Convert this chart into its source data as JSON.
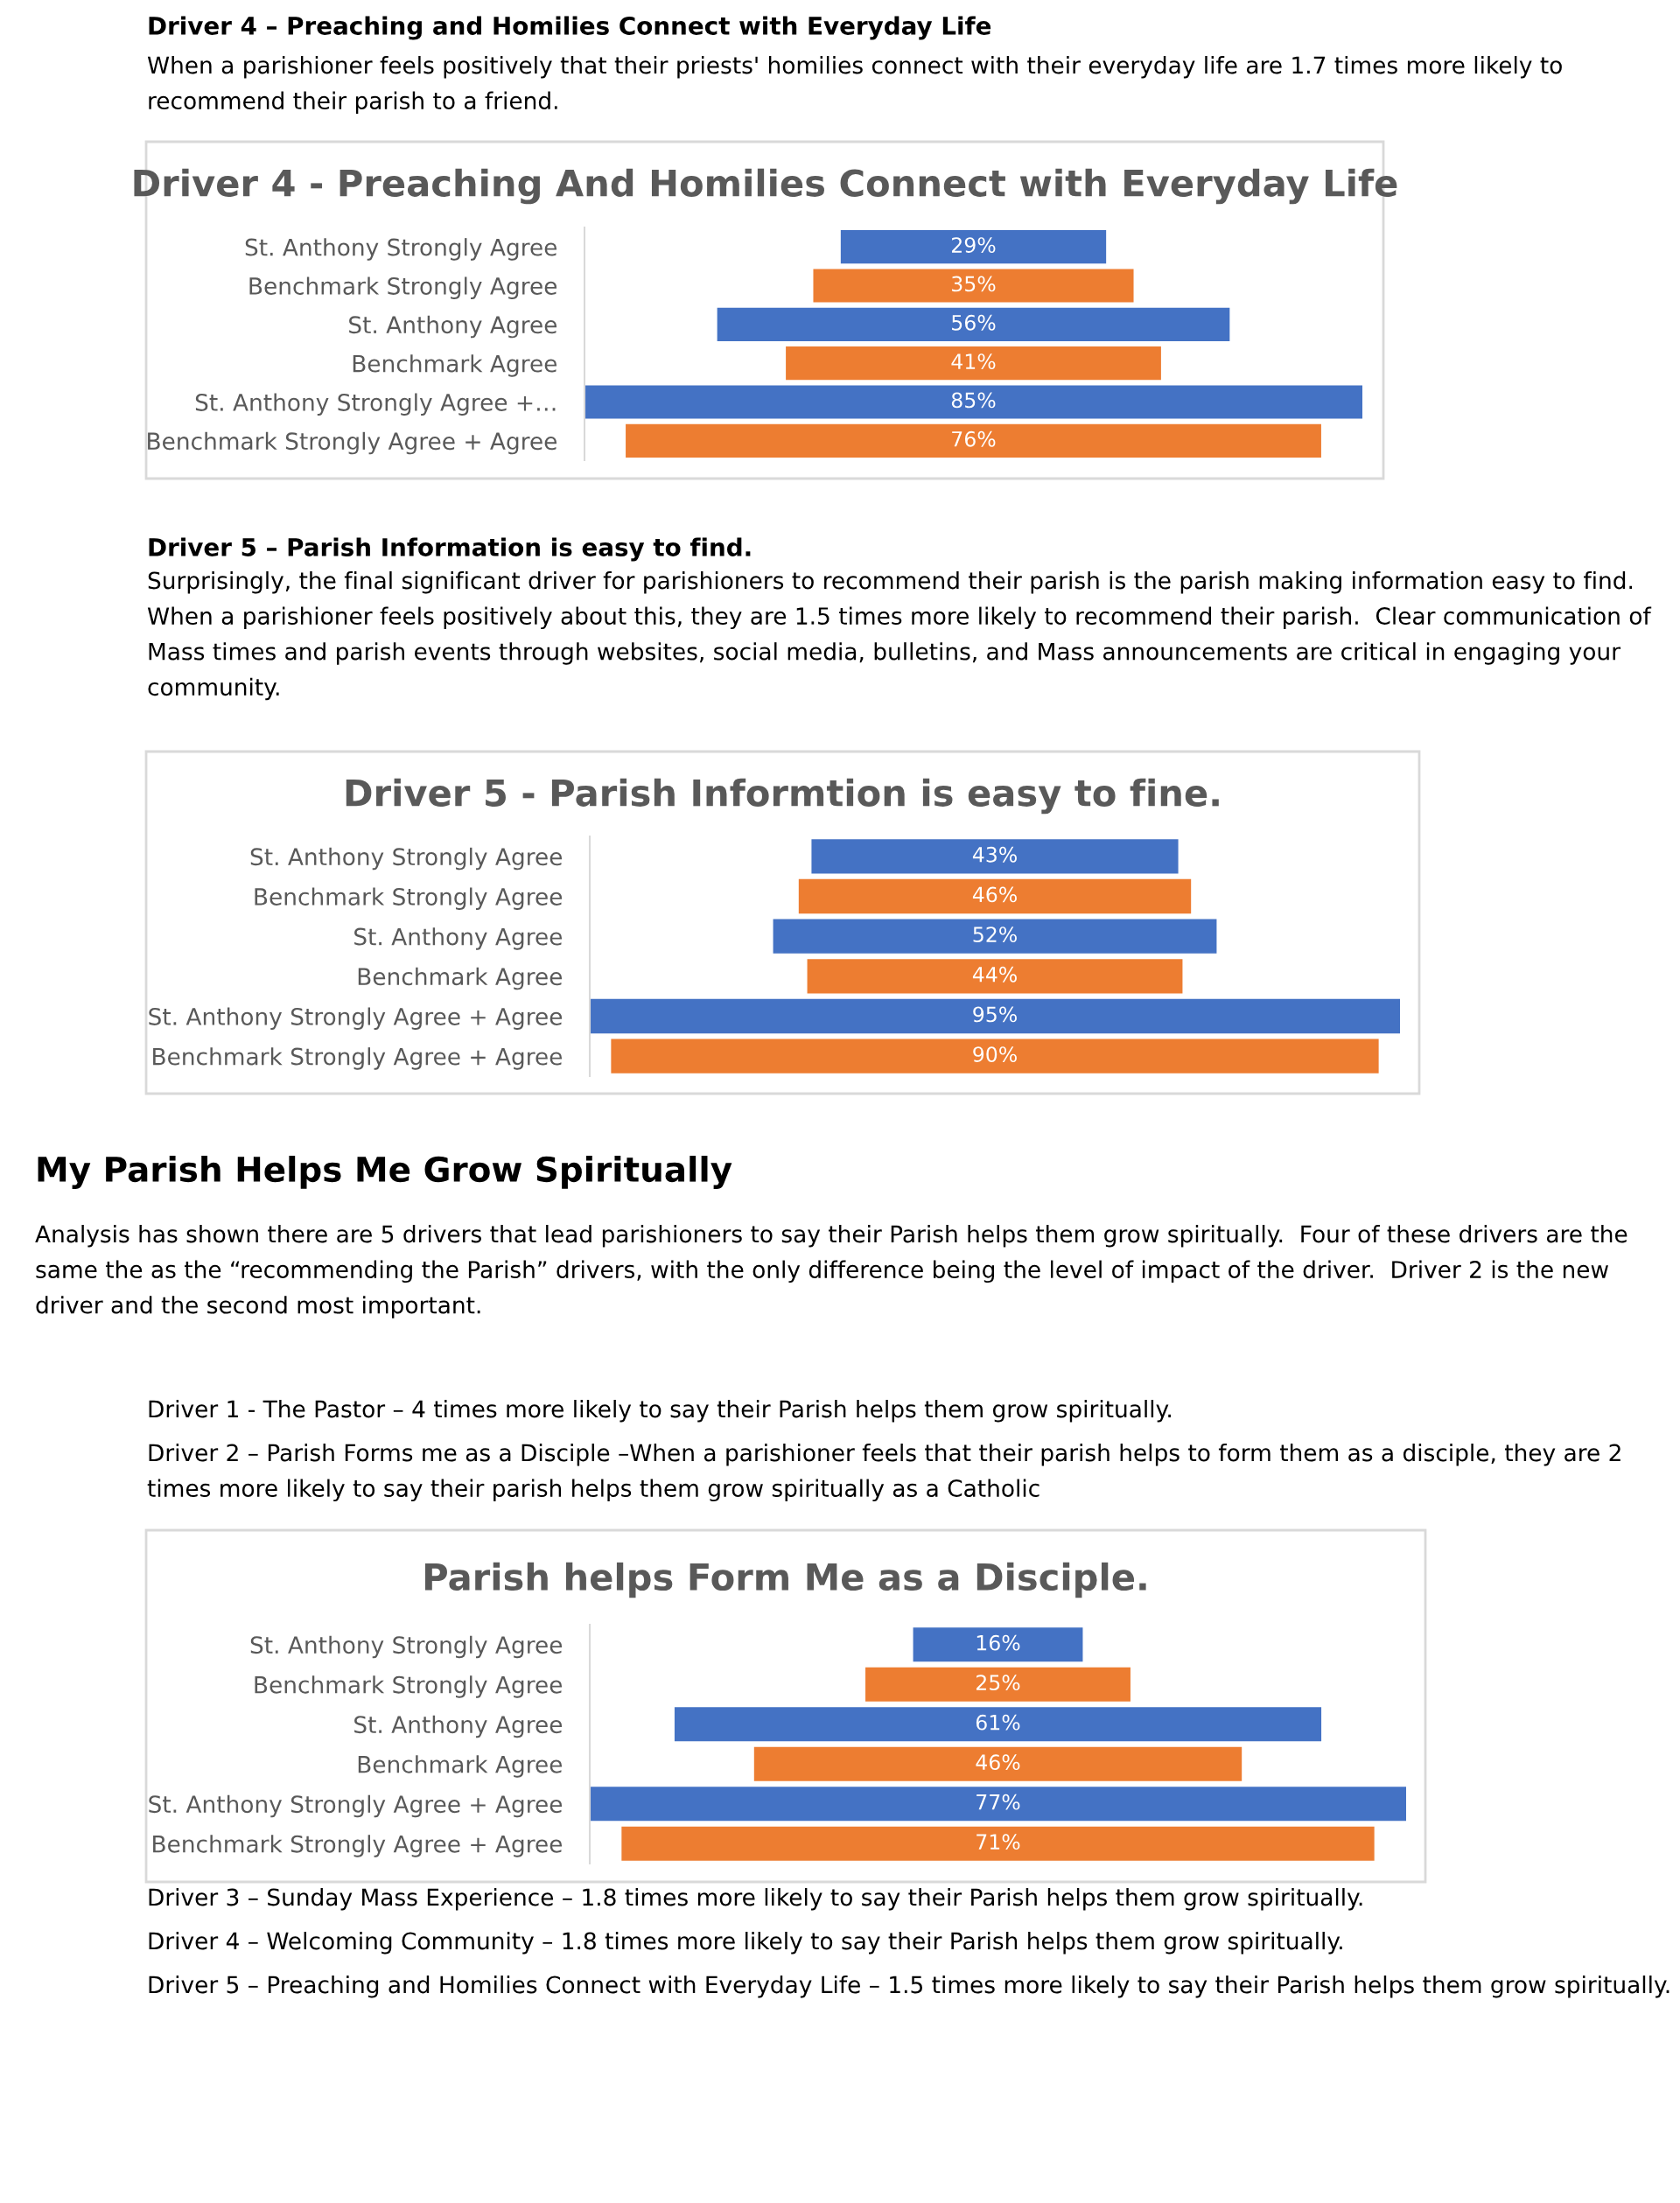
{
  "chart_data": [
    {
      "type": "other",
      "title": "Driver 4 – Preaching and Homilies Connect with Everyday Life",
      "annotations": [
        "When a parishioner feels positively that their priests' homilies connect with their everyday life are 1.7 times more likely to recommend their parish to a friend."
      ]
    },
    {
      "type": "other",
      "title": "Driver 4 - Preaching And Homilies Connect with Everyday Life",
      "categories": [
        "St. Anthony Strongly Agree",
        "Benchmark Strongly Agree",
        "St. Anthony Agree",
        "Benchmark Agree",
        "St. Anthony Strongly Agree +…",
        "Benchmark Strongly Agree + Agree"
      ],
      "values": [
        29,
        35,
        56,
        41,
        85,
        76
      ],
      "colors": [
        "#4472c4",
        "#ed7d31",
        "#4472c4",
        "#ed7d31",
        "#4472c4",
        "#ed7d31"
      ],
      "value_labels": [
        "29%",
        "35%",
        "56%",
        "41%",
        "85%",
        "76%"
      ]
    },
    {
      "type": "other",
      "title": "Driver 5 – Parish Information is easy to find.",
      "annotations": [
        "Surprisingly, the final significant driver for parishioners to recommend their parish is the parish making information easy to find. When a parishioner feels positively about this, they are 1.5 times more likely to recommend their parish.  Clear communication of Mass times and parish events through websites, social media, bulletins, and Mass announcements are critical in engaging your community."
      ]
    },
    {
      "type": "other",
      "title": "Driver 5 - Parish Informtion is easy to fine.",
      "categories": [
        "St. Anthony Strongly Agree",
        "Benchmark Strongly Agree",
        "St. Anthony Agree",
        "Benchmark Agree",
        "St. Anthony Strongly Agree + Agree",
        "Benchmark Strongly Agree + Agree"
      ],
      "values": [
        43,
        46,
        52,
        44,
        95,
        90
      ],
      "colors": [
        "#4472c4",
        "#ed7d31",
        "#4472c4",
        "#ed7d31",
        "#4472c4",
        "#ed7d31"
      ],
      "value_labels": [
        "43%",
        "46%",
        "52%",
        "44%",
        "95%",
        "90%"
      ]
    },
    {
      "type": "other",
      "title": "My Parish Helps Me Grow Spiritually",
      "annotations": [
        "Analysis has shown there are 5 drivers that lead parishioners to say their Parish helps them grow spiritually.  Four of these drivers are the same the as the “recommending the Parish” drivers, with the only difference being the level of impact of the driver.  Driver 2 is the new driver and the second most important.",
        "Driver 1 - The Pastor – 4 times more likely to say their Parish helps them grow spiritually.",
        "Driver 2 – Parish Forms me as a Disciple –When a parishioner feels that their parish helps to form them as a disciple, they are 2 times more likely to say their parish helps them grow spiritually as a Catholic"
      ]
    },
    {
      "type": "other",
      "title": "Parish helps Form Me as a Disciple.",
      "categories": [
        "St. Anthony Strongly Agree",
        "Benchmark Strongly Agree",
        "St. Anthony Agree",
        "Benchmark Agree",
        "St. Anthony Strongly Agree + Agree",
        "Benchmark Strongly Agree + Agree"
      ],
      "values": [
        16,
        25,
        61,
        46,
        77,
        71
      ],
      "colors": [
        "#4472c4",
        "#ed7d31",
        "#4472c4",
        "#ed7d31",
        "#4472c4",
        "#ed7d31"
      ],
      "value_labels": [
        "16%",
        "25%",
        "61%",
        "46%",
        "77%",
        "71%"
      ]
    },
    {
      "type": "other",
      "annotations": [
        "Driver 3 – Sunday Mass Experience – 1.8 times more likely to say their Parish helps them grow spiritually.",
        "Driver 4 – Welcoming Community – 1.8 times more likely to say their Parish helps them grow spiritually.",
        "Driver 5 – Preaching and Homilies Connect with Everyday Life – 1.5 times more likely to say their Parish helps them grow spiritually."
      ]
    }
  ]
}
